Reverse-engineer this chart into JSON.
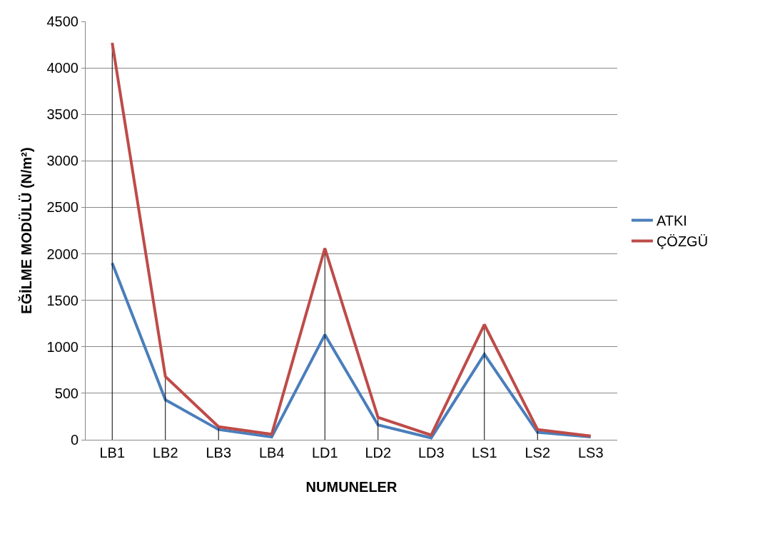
{
  "chart_data": {
    "type": "line",
    "xlabel": "NUMUNELER",
    "ylabel": "EĞİLME MODÜLÜ (N/m²)",
    "categories": [
      "LB1",
      "LB2",
      "LB3",
      "LB4",
      "LD1",
      "LD2",
      "LD3",
      "LS1",
      "LS2",
      "LS3"
    ],
    "series": [
      {
        "name": "ATKI",
        "color": "#4a7ebb",
        "values": [
          1900,
          430,
          110,
          30,
          1130,
          160,
          20,
          920,
          80,
          30
        ]
      },
      {
        "name": "ÇÖZGÜ",
        "color": "#be4b48",
        "values": [
          4270,
          680,
          140,
          60,
          2060,
          240,
          50,
          1240,
          110,
          40
        ],
        "errors": [
          [
            0,
            4270
          ],
          [
            0,
            680
          ],
          [
            0,
            140
          ],
          null,
          [
            0,
            2060
          ],
          [
            0,
            240
          ],
          null,
          [
            0,
            1240
          ],
          [
            0,
            110
          ],
          null
        ]
      }
    ],
    "ylim": [
      0,
      4500
    ],
    "yticks": [
      0,
      500,
      1000,
      1500,
      2000,
      2500,
      3000,
      3500,
      4000,
      4500
    ],
    "grid": "y",
    "legend": "right",
    "marker": "none",
    "line_style": "solid"
  }
}
